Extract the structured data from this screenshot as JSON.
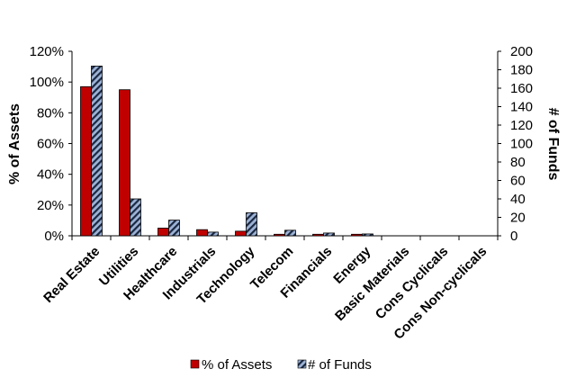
{
  "chart_data": {
    "type": "bar",
    "categories": [
      "Real Estate",
      "Utilities",
      "Healthcare",
      "Industrials",
      "Technology",
      "Telecom",
      "Financials",
      "Energy",
      "Basic Materials",
      "Cons Cyclicals",
      "Cons Non-cyclicals"
    ],
    "series": [
      {
        "name": "% of Assets",
        "axis": "left",
        "color": "#c00000",
        "values": [
          97,
          95,
          5,
          4,
          3,
          1,
          1,
          1,
          0,
          0,
          0
        ]
      },
      {
        "name": "# of Funds",
        "axis": "right",
        "color": "#9db3d6",
        "pattern": "hatched",
        "values": [
          184,
          40,
          17,
          4,
          25,
          6,
          3,
          2,
          0,
          0,
          0
        ]
      }
    ],
    "ylabel": "% of Assets",
    "y2label": "# of Funds",
    "ylim": [
      0,
      120
    ],
    "y2lim": [
      0,
      200
    ],
    "yticks": [
      "0%",
      "20%",
      "40%",
      "60%",
      "80%",
      "100%",
      "120%"
    ],
    "y2ticks": [
      "0",
      "20",
      "40",
      "60",
      "80",
      "100",
      "120",
      "140",
      "160",
      "180",
      "200"
    ],
    "grid": false,
    "legend": "bottom"
  }
}
